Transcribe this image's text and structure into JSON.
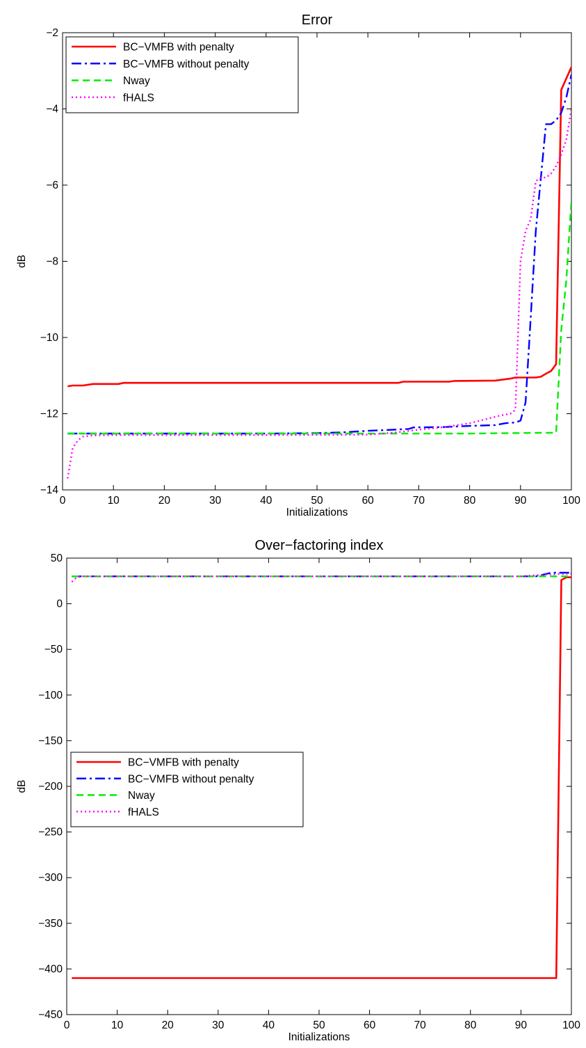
{
  "chart_data": [
    {
      "type": "line",
      "title": "Error",
      "xlabel": "Initializations",
      "ylabel": "dB",
      "xlim": [
        0,
        100
      ],
      "ylim": [
        -14,
        -2
      ],
      "xticks": [
        0,
        10,
        20,
        30,
        40,
        50,
        60,
        70,
        80,
        90,
        100
      ],
      "yticks": [
        -14,
        -12,
        -10,
        -8,
        -6,
        -4,
        -2
      ],
      "grid": false,
      "legend_position": "top-left",
      "series": [
        {
          "name": "BC−VMFB with penalty",
          "color": "#ff0000",
          "dash": "solid",
          "x": [
            1,
            2,
            4,
            6,
            11,
            12,
            20,
            40,
            60,
            66,
            67,
            76,
            77,
            85,
            88,
            89,
            90,
            92,
            93,
            94,
            95,
            96,
            97,
            98,
            99,
            100
          ],
          "y": [
            -11.28,
            -11.26,
            -11.26,
            -11.22,
            -11.22,
            -11.19,
            -11.19,
            -11.19,
            -11.19,
            -11.19,
            -11.16,
            -11.16,
            -11.14,
            -11.13,
            -11.08,
            -11.05,
            -11.05,
            -11.05,
            -11.05,
            -11.03,
            -10.95,
            -10.88,
            -10.7,
            -3.5,
            -3.2,
            -2.9
          ]
        },
        {
          "name": "BC−VMFB without penalty",
          "color": "#0000ff",
          "dash": "dashdot",
          "x": [
            1,
            10,
            20,
            30,
            40,
            50,
            55,
            60,
            65,
            68,
            69,
            75,
            80,
            85,
            87,
            89,
            90,
            91,
            92,
            93,
            94,
            95,
            96,
            97,
            98,
            99,
            100
          ],
          "y": [
            -12.52,
            -12.52,
            -12.52,
            -12.52,
            -12.52,
            -12.51,
            -12.49,
            -12.45,
            -12.42,
            -12.4,
            -12.36,
            -12.35,
            -12.32,
            -12.3,
            -12.25,
            -12.23,
            -12.18,
            -11.7,
            -9.5,
            -7.2,
            -5.8,
            -4.4,
            -4.4,
            -4.3,
            -4.1,
            -3.7,
            -3.1
          ]
        },
        {
          "name": "Nway",
          "color": "#00ee00",
          "dash": "dashed",
          "x": [
            1,
            10,
            20,
            40,
            60,
            80,
            95,
            97,
            98,
            99,
            100
          ],
          "y": [
            -12.52,
            -12.52,
            -12.52,
            -12.52,
            -12.52,
            -12.52,
            -12.5,
            -12.5,
            -9.8,
            -8.5,
            -6.4
          ]
        },
        {
          "name": "fHALS",
          "color": "#ff00ff",
          "dash": "dotted",
          "x": [
            1,
            2,
            3,
            4,
            6,
            10,
            20,
            40,
            60,
            65,
            70,
            75,
            80,
            83,
            86,
            88,
            89,
            90,
            91,
            92,
            93,
            94,
            95,
            96,
            97,
            98,
            99,
            100
          ],
          "y": [
            -13.7,
            -12.9,
            -12.7,
            -12.6,
            -12.57,
            -12.56,
            -12.56,
            -12.56,
            -12.55,
            -12.5,
            -12.42,
            -12.35,
            -12.25,
            -12.15,
            -12.05,
            -12.0,
            -11.9,
            -8.0,
            -7.2,
            -6.9,
            -5.9,
            -5.8,
            -5.8,
            -5.7,
            -5.5,
            -5.2,
            -4.8,
            -4.0
          ]
        }
      ],
      "legend": [
        "BC−VMFB with penalty",
        "BC−VMFB without penalty",
        "Nway",
        "fHALS"
      ]
    },
    {
      "type": "line",
      "title": "Over−factoring index",
      "xlabel": "Initializations",
      "ylabel": "dB",
      "xlim": [
        0,
        100
      ],
      "ylim": [
        -450,
        50
      ],
      "xticks": [
        0,
        10,
        20,
        30,
        40,
        50,
        60,
        70,
        80,
        90,
        100
      ],
      "yticks": [
        -450,
        -400,
        -350,
        -300,
        -250,
        -200,
        -150,
        -100,
        -50,
        0,
        50
      ],
      "grid": false,
      "legend_position": "middle-left",
      "series": [
        {
          "name": "BC−VMFB with penalty",
          "color": "#ff0000",
          "dash": "solid",
          "x": [
            1,
            97,
            98,
            99,
            100
          ],
          "y": [
            -410,
            -410,
            26,
            29,
            29
          ]
        },
        {
          "name": "BC−VMFB without penalty",
          "color": "#0000ff",
          "dash": "dashdot",
          "x": [
            1,
            90,
            93,
            96,
            100
          ],
          "y": [
            30,
            30,
            30,
            34,
            34
          ]
        },
        {
          "name": "Nway",
          "color": "#00ee00",
          "dash": "dashed",
          "x": [
            1,
            50,
            97,
            100
          ],
          "y": [
            30,
            30,
            30,
            30
          ]
        },
        {
          "name": "fHALS",
          "color": "#ff00ff",
          "dash": "dotted",
          "x": [
            1,
            2,
            3,
            50,
            90,
            95,
            100
          ],
          "y": [
            24,
            29,
            30,
            30,
            30,
            32,
            33
          ]
        }
      ],
      "legend": [
        "BC−VMFB with penalty",
        "BC−VMFB without penalty",
        "Nway",
        "fHALS"
      ]
    }
  ]
}
